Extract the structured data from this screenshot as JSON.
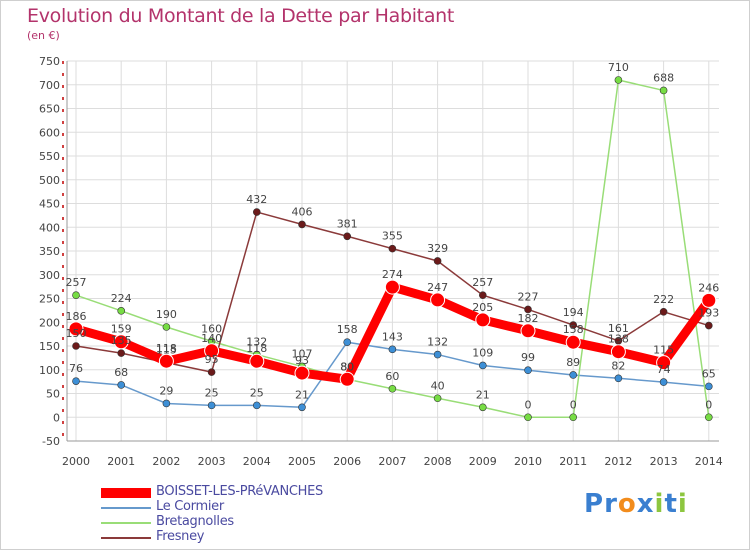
{
  "header": {
    "title": "Evolution du Montant de la Dette par Habitant",
    "subtitle": "(en €)"
  },
  "chart_data": {
    "type": "line",
    "title": "Evolution du Montant de la Dette par Habitant",
    "subtitle": "(en €)",
    "xlabel": "",
    "ylabel": "",
    "x": [
      "2000",
      "2001",
      "2002",
      "2003",
      "2004",
      "2005",
      "2006",
      "2007",
      "2008",
      "2009",
      "2010",
      "2011",
      "2012",
      "2013",
      "2014"
    ],
    "y_ticks": [
      -50,
      0,
      50,
      100,
      150,
      200,
      250,
      300,
      350,
      400,
      450,
      500,
      550,
      600,
      650,
      700,
      750
    ],
    "ylim": [
      -50,
      750
    ],
    "grid": true,
    "legend_position": "bottom-left",
    "series": [
      {
        "name": "BOISSET-LES-PRéVANCHES",
        "color": "#ff0000",
        "marker_color": "#ff0000",
        "emphasis": true,
        "values": [
          186,
          159,
          118,
          140,
          118,
          93,
          80,
          274,
          247,
          205,
          182,
          158,
          138,
          115,
          246
        ]
      },
      {
        "name": "Le Cormier",
        "color": "#6699cc",
        "marker_color": "#3d8fd6",
        "values": [
          76,
          68,
          29,
          25,
          25,
          21,
          158,
          143,
          132,
          109,
          99,
          89,
          82,
          74,
          65
        ]
      },
      {
        "name": "Bretagnolles",
        "color": "#99dd77",
        "marker_color": "#77dd44",
        "values": [
          257,
          224,
          190,
          160,
          132,
          107,
          80,
          60,
          40,
          21,
          0,
          0,
          710,
          688,
          0
        ]
      },
      {
        "name": "Fresney",
        "color": "#8b3a3a",
        "marker_color": "#6b1a1a",
        "values": [
          150,
          135,
          115,
          95,
          432,
          406,
          381,
          355,
          329,
          257,
          227,
          194,
          161,
          222,
          193
        ]
      }
    ]
  },
  "logo": {
    "letters": [
      {
        "ch": "P",
        "color": "#3a7fd0"
      },
      {
        "ch": "r",
        "color": "#3a7fd0"
      },
      {
        "ch": "o",
        "color": "#f28c1c"
      },
      {
        "ch": "x",
        "color": "#3a7fd0"
      },
      {
        "ch": "i",
        "color": "#8dc63f"
      },
      {
        "ch": "t",
        "color": "#3a7fd0"
      },
      {
        "ch": "i",
        "color": "#8dc63f"
      }
    ]
  }
}
